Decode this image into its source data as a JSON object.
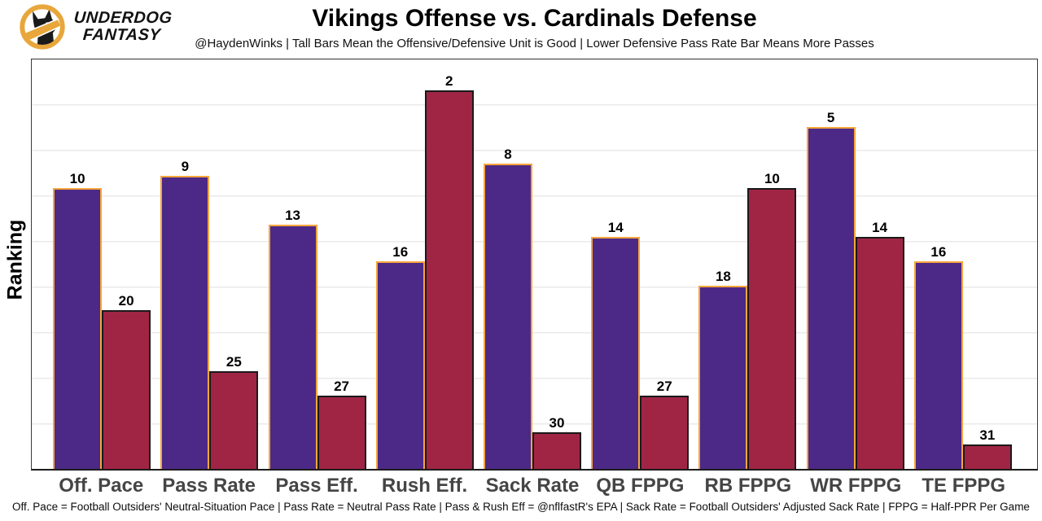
{
  "header": {
    "logo_line1": "UNDERDOG",
    "logo_line2": "FANTASY",
    "title": "Vikings Offense vs. Cardinals Defense",
    "subtitle": "@HaydenWinks | Tall Bars Mean the Offensive/Defensive Unit is Good | Lower Defensive Pass Rate Bar Means More Passes"
  },
  "chart": {
    "ylabel": "Ranking",
    "footnote": "Off. Pace = Football Outsiders' Neutral-Situation Pace | Pass Rate = Neutral Pass Rate | Pass & Rush Eff = @nflfastR's EPA | Sack Rate = Football Outsiders' Adjusted Sack Rate | FPPG = Half-PPR Per Game"
  },
  "chart_data": {
    "type": "bar",
    "title": "Vikings Offense vs. Cardinals Defense",
    "ylabel": "Ranking",
    "categories": [
      "Off. Pace",
      "Pass Rate",
      "Pass Eff.",
      "Rush Eff.",
      "Sack Rate",
      "QB FPPG",
      "RB FPPG",
      "WR FPPG",
      "TE FPPG"
    ],
    "series": [
      {
        "name": "Vikings Offense (purple bars)",
        "values": [
          10,
          9,
          13,
          16,
          8,
          14,
          18,
          5,
          16
        ]
      },
      {
        "name": "Cardinals Defense (red bars)",
        "values": [
          20,
          25,
          27,
          2,
          30,
          27,
          10,
          14,
          31
        ]
      }
    ],
    "value_meaning": "NFL rank out of 32 (1 = best); bars drawn with height 33 - rank so taller bars = better unit",
    "ylim": [
      0,
      33.5
    ],
    "grid": "horizontal light gray lines, no y tick labels",
    "legend": "none",
    "bar_labels": "rank number shown above each bar"
  },
  "colors": {
    "offense_fill": "#4C2987",
    "offense_border": "#F7A53C",
    "defense_fill": "#A02545",
    "defense_border": "#1A1A1A",
    "gridline": "#EAEAEA",
    "panel_border": "#3A3A3A",
    "logo_gold": "#E8A63B",
    "xlabel_color": "#454545"
  }
}
